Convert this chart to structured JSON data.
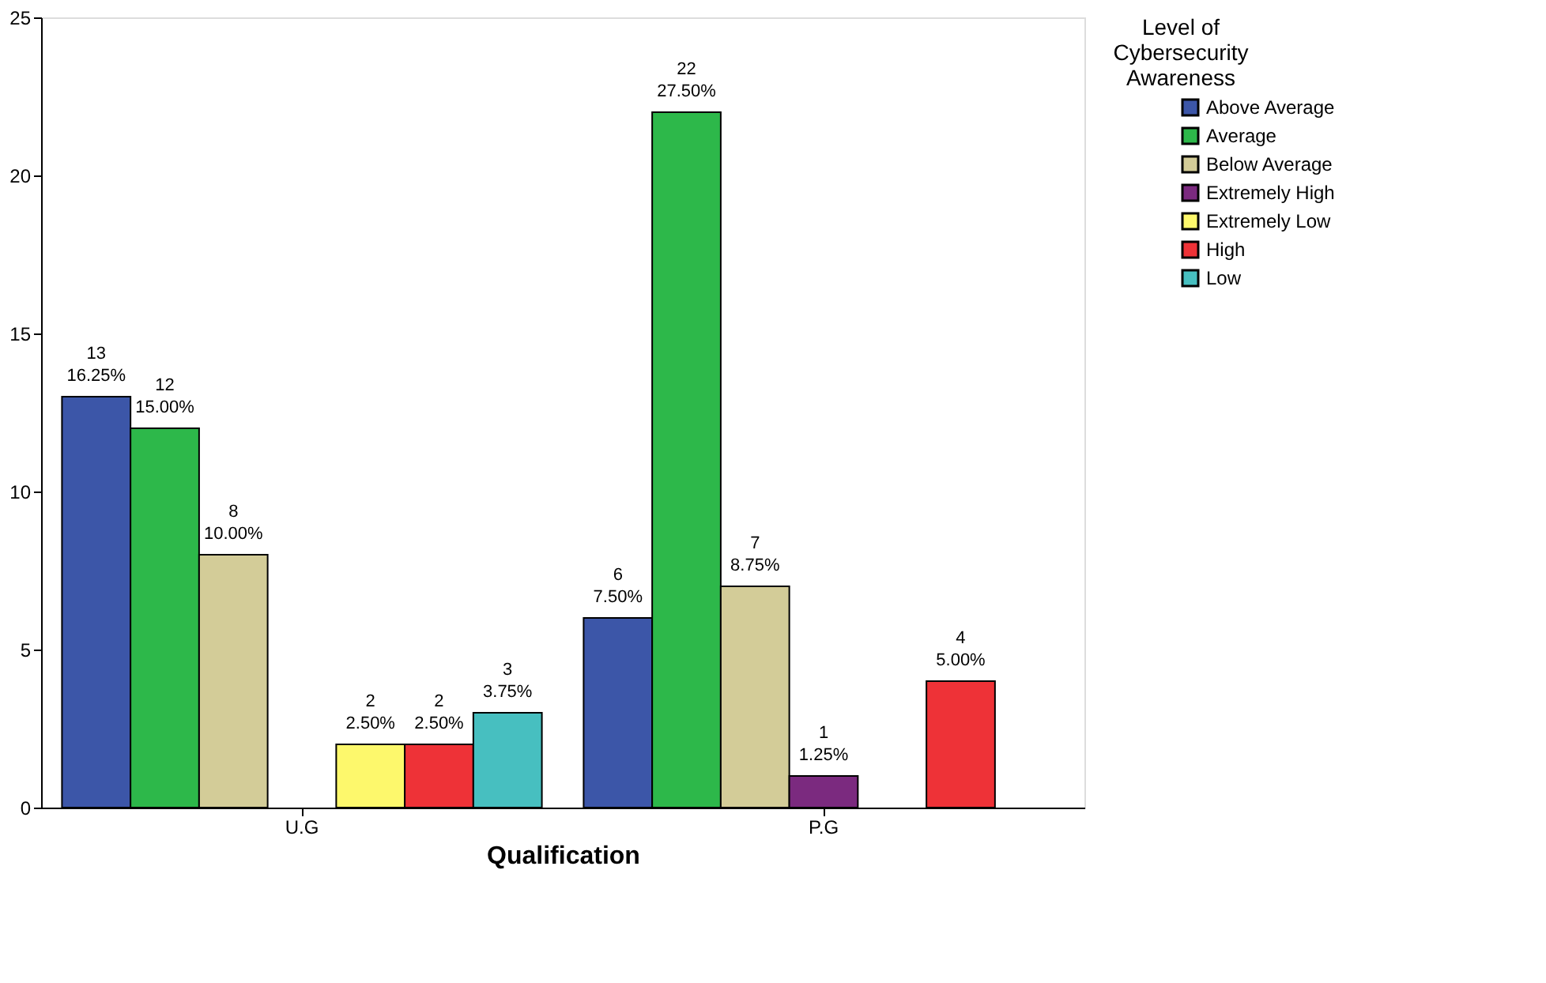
{
  "chart_data": {
    "type": "bar",
    "xlabel": "Qualification",
    "legend_title": "Level of Cybersecurity Awareness",
    "categories": [
      "U.G",
      "P.G"
    ],
    "series": [
      {
        "name": "Above Average",
        "color": "#3c56a8",
        "values": [
          13,
          6
        ],
        "value_labels": [
          "13\n16.25%",
          "6\n7.50%"
        ]
      },
      {
        "name": "Average",
        "color": "#2db84a",
        "values": [
          12,
          22
        ],
        "value_labels": [
          "12\n15.00%",
          "22\n27.50%"
        ]
      },
      {
        "name": "Below Average",
        "color": "#d3cc98",
        "values": [
          8,
          7
        ],
        "value_labels": [
          "8\n10.00%",
          "7\n8.75%"
        ]
      },
      {
        "name": "Extremely High",
        "color": "#7b2a7f",
        "values": [
          null,
          1
        ],
        "value_labels": [
          null,
          "1\n1.25%"
        ]
      },
      {
        "name": "Extremely Low",
        "color": "#fdf86c",
        "values": [
          2,
          null
        ],
        "value_labels": [
          "2\n2.50%",
          null
        ]
      },
      {
        "name": "High",
        "color": "#ee3237",
        "values": [
          2,
          4
        ],
        "value_labels": [
          "2\n2.50%",
          "4\n5.00%"
        ]
      },
      {
        "name": "Low",
        "color": "#47bfc0",
        "values": [
          3,
          null
        ],
        "value_labels": [
          "3\n3.75%",
          null
        ]
      }
    ],
    "ylim": [
      0,
      25
    ],
    "yticks": [
      0,
      5,
      10,
      15,
      20,
      25
    ],
    "grid": false,
    "legend": "right"
  }
}
